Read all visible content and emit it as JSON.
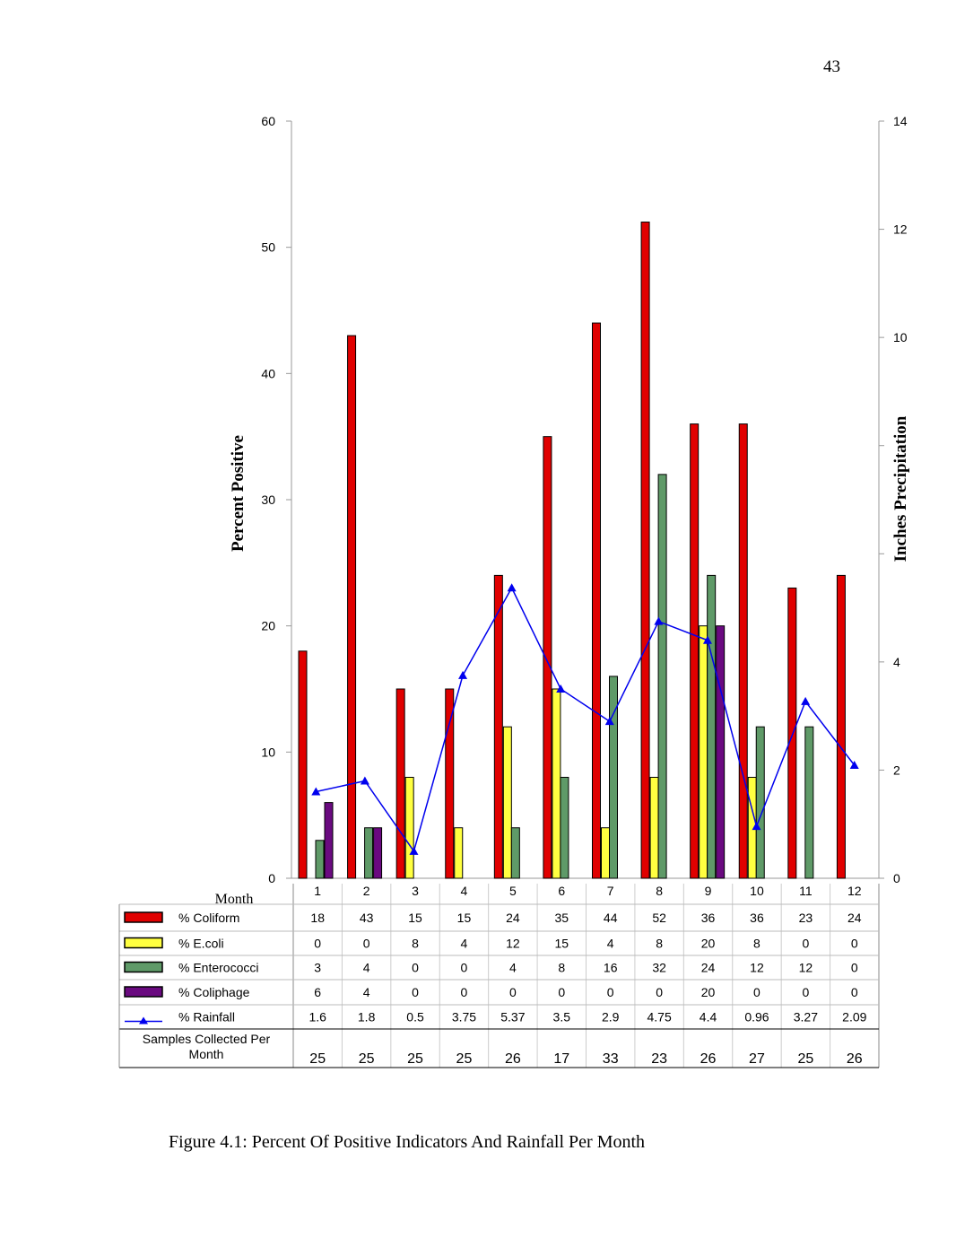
{
  "page_number": "43",
  "caption": "Figure 4.1: Percent Of Positive Indicators And Rainfall Per Month",
  "chart_data": {
    "type": "bar",
    "title": "",
    "xlabel": "Month",
    "ylabel": "Percent Positive",
    "y2label": "Inches Precipitation",
    "ylim": [
      0,
      60
    ],
    "y2lim": [
      0,
      14
    ],
    "yticks": [
      "0",
      "10",
      "20",
      "30",
      "40",
      "50",
      "60"
    ],
    "y2ticks": [
      "0",
      "2",
      "4",
      "",
      "",
      "10",
      "12",
      "14"
    ],
    "categories": [
      "1",
      "2",
      "3",
      "4",
      "5",
      "6",
      "7",
      "8",
      "9",
      "10",
      "11",
      "12"
    ],
    "series": [
      {
        "name": "% Coliform",
        "kind": "bar",
        "color": "#e00000",
        "values": [
          "18",
          "43",
          "15",
          "15",
          "24",
          "35",
          "44",
          "52",
          "36",
          "36",
          "23",
          "24"
        ]
      },
      {
        "name": "% E.coli",
        "kind": "bar",
        "color": "#ffff40",
        "values": [
          "0",
          "0",
          "8",
          "4",
          "12",
          "15",
          "4",
          "8",
          "20",
          "8",
          "0",
          "0"
        ]
      },
      {
        "name": "% Enterococci",
        "kind": "bar",
        "color": "#5f9a68",
        "values": [
          "3",
          "4",
          "0",
          "0",
          "4",
          "8",
          "16",
          "32",
          "24",
          "12",
          "12",
          "0"
        ]
      },
      {
        "name": "% Coliphage",
        "kind": "bar",
        "color": "#6a0a80",
        "values": [
          "6",
          "4",
          "0",
          "0",
          "0",
          "0",
          "0",
          "0",
          "20",
          "0",
          "0",
          "0"
        ]
      },
      {
        "name": "% Rainfall",
        "kind": "line",
        "axis": "right",
        "color": "#0000ee",
        "values": [
          "1.6",
          "1.8",
          "0.5",
          "3.75",
          "5.37",
          "3.5",
          "2.9",
          "4.75",
          "4.4",
          "0.96",
          "3.27",
          "2.09"
        ]
      }
    ],
    "samples_label": "Samples Collected Per Month",
    "samples": [
      "25",
      "25",
      "25",
      "25",
      "26",
      "17",
      "33",
      "23",
      "26",
      "27",
      "25",
      "26"
    ],
    "legend": "bottom data table"
  }
}
